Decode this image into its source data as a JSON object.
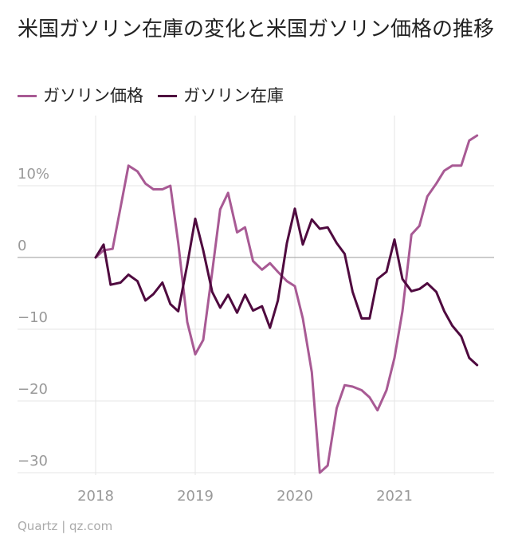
{
  "chart_data": {
    "type": "line",
    "title": "米国ガソリン在庫の変化と米国ガソリン価格の推移",
    "xlabel": "",
    "ylabel": "",
    "xlim": [
      2018,
      2022
    ],
    "ylim": [
      -30,
      17
    ],
    "grid": true,
    "legend_position": "top-left",
    "x_ticks": [
      {
        "value": 2018,
        "label": "2018"
      },
      {
        "value": 2019,
        "label": "2019"
      },
      {
        "value": 2020,
        "label": "2020"
      },
      {
        "value": 2021,
        "label": "2021"
      }
    ],
    "y_ticks": [
      {
        "value": 10,
        "label": "10%"
      },
      {
        "value": 0,
        "label": "0"
      },
      {
        "value": -10,
        "label": "−10"
      },
      {
        "value": -20,
        "label": "−20"
      },
      {
        "value": -30,
        "label": "−30"
      }
    ],
    "series": [
      {
        "name": "ガソリン価格",
        "color": "#a85a94",
        "points": [
          [
            2018.0,
            0.0
          ],
          [
            2018.08,
            1.0
          ],
          [
            2018.17,
            1.2
          ],
          [
            2018.25,
            7.0
          ],
          [
            2018.33,
            12.8
          ],
          [
            2018.42,
            12.0
          ],
          [
            2018.5,
            10.3
          ],
          [
            2018.58,
            9.5
          ],
          [
            2018.67,
            9.5
          ],
          [
            2018.75,
            10.0
          ],
          [
            2018.83,
            2.0
          ],
          [
            2018.92,
            -9.0
          ],
          [
            2019.0,
            -13.5
          ],
          [
            2019.08,
            -11.5
          ],
          [
            2019.17,
            -2.0
          ],
          [
            2019.25,
            6.7
          ],
          [
            2019.33,
            9.0
          ],
          [
            2019.42,
            3.5
          ],
          [
            2019.5,
            4.2
          ],
          [
            2019.58,
            -0.5
          ],
          [
            2019.67,
            -1.7
          ],
          [
            2019.75,
            -0.8
          ],
          [
            2019.83,
            -2.0
          ],
          [
            2019.92,
            -3.3
          ],
          [
            2020.0,
            -4.0
          ],
          [
            2020.08,
            -8.5
          ],
          [
            2020.17,
            -16.0
          ],
          [
            2020.25,
            -30.0
          ],
          [
            2020.33,
            -29.0
          ],
          [
            2020.42,
            -21.0
          ],
          [
            2020.5,
            -17.8
          ],
          [
            2020.58,
            -18.0
          ],
          [
            2020.67,
            -18.5
          ],
          [
            2020.75,
            -19.5
          ],
          [
            2020.83,
            -21.3
          ],
          [
            2020.92,
            -18.5
          ],
          [
            2021.0,
            -14.0
          ],
          [
            2021.08,
            -7.5
          ],
          [
            2021.17,
            3.2
          ],
          [
            2021.25,
            4.4
          ],
          [
            2021.33,
            8.5
          ],
          [
            2021.42,
            10.3
          ],
          [
            2021.5,
            12.1
          ],
          [
            2021.58,
            12.8
          ],
          [
            2021.67,
            12.8
          ],
          [
            2021.75,
            16.3
          ],
          [
            2021.83,
            17.0
          ]
        ]
      },
      {
        "name": "ガソリン在庫",
        "color": "#4f0a3f",
        "points": [
          [
            2018.0,
            0.0
          ],
          [
            2018.08,
            1.8
          ],
          [
            2018.15,
            -3.8
          ],
          [
            2018.25,
            -3.5
          ],
          [
            2018.33,
            -2.4
          ],
          [
            2018.42,
            -3.3
          ],
          [
            2018.5,
            -6.0
          ],
          [
            2018.58,
            -5.1
          ],
          [
            2018.67,
            -3.5
          ],
          [
            2018.75,
            -6.5
          ],
          [
            2018.83,
            -7.5
          ],
          [
            2018.92,
            -1.0
          ],
          [
            2019.0,
            5.4
          ],
          [
            2019.08,
            1.0
          ],
          [
            2019.17,
            -4.8
          ],
          [
            2019.25,
            -7.0
          ],
          [
            2019.33,
            -5.2
          ],
          [
            2019.42,
            -7.7
          ],
          [
            2019.5,
            -5.2
          ],
          [
            2019.58,
            -7.4
          ],
          [
            2019.67,
            -6.8
          ],
          [
            2019.75,
            -9.8
          ],
          [
            2019.83,
            -6.0
          ],
          [
            2019.92,
            2.0
          ],
          [
            2020.0,
            6.8
          ],
          [
            2020.08,
            1.8
          ],
          [
            2020.17,
            5.3
          ],
          [
            2020.25,
            4.0
          ],
          [
            2020.33,
            4.2
          ],
          [
            2020.42,
            2.0
          ],
          [
            2020.5,
            0.5
          ],
          [
            2020.58,
            -4.8
          ],
          [
            2020.67,
            -8.5
          ],
          [
            2020.75,
            -8.5
          ],
          [
            2020.83,
            -3.0
          ],
          [
            2020.92,
            -2.0
          ],
          [
            2021.0,
            2.5
          ],
          [
            2021.08,
            -3.0
          ],
          [
            2021.17,
            -4.7
          ],
          [
            2021.25,
            -4.4
          ],
          [
            2021.33,
            -3.6
          ],
          [
            2021.42,
            -4.8
          ],
          [
            2021.5,
            -7.5
          ],
          [
            2021.58,
            -9.5
          ],
          [
            2021.67,
            -11.0
          ],
          [
            2021.75,
            -14.0
          ],
          [
            2021.83,
            -15.0
          ]
        ]
      }
    ]
  },
  "footer": {
    "source": "Quartz | qz.com"
  }
}
